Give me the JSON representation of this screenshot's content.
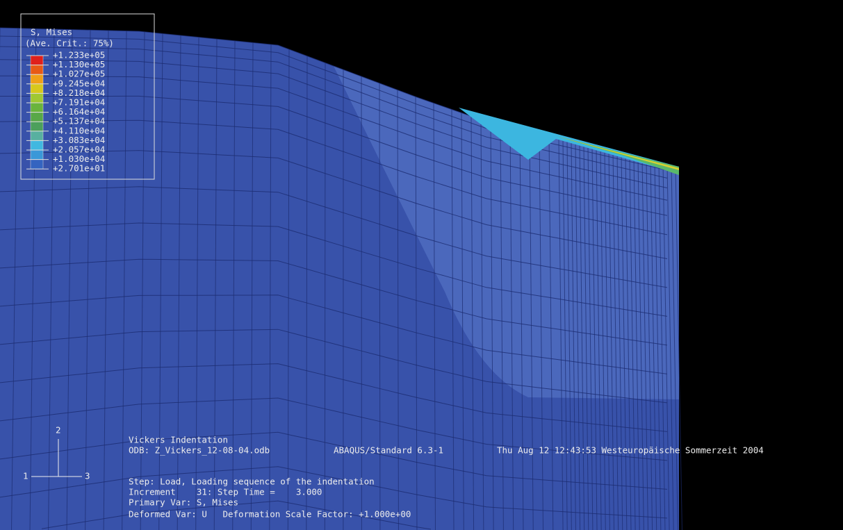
{
  "legend": {
    "title": "S, Mises",
    "subtitle": "(Ave. Crit.: 75%)",
    "entries": [
      "+1.233e+05",
      "+1.130e+05",
      "+1.027e+05",
      "+9.245e+04",
      "+8.218e+04",
      "+7.191e+04",
      "+6.164e+04",
      "+5.137e+04",
      "+4.110e+04",
      "+3.083e+04",
      "+2.057e+04",
      "+1.030e+04",
      "+2.701e+01"
    ],
    "colors": [
      "#e0201c",
      "#e85a16",
      "#f0a018",
      "#d8c81c",
      "#a0c832",
      "#6ab43c",
      "#58a848",
      "#4ca05c",
      "#58b0a0",
      "#40b8e0",
      "#3a98d8",
      "#3464c0"
    ]
  },
  "info": {
    "title": "Vickers Indentation",
    "odb": "ODB: Z_Vickers_12-08-04.odb",
    "solver": "ABAQUS/Standard 6.3-1",
    "date": "Thu Aug 12 12:43:53 Westeuropäische Sommerzeit 2004",
    "step": "Step: Load, Loading sequence of the indentation",
    "increment": "Increment    31: Step Time =    3.000",
    "primary": "Primary Var: S, Mises",
    "deformed": "Deformed Var: U   Deformation Scale Factor: +1.000e+00"
  },
  "triad": {
    "up": "2",
    "left": "1",
    "right": "3"
  }
}
